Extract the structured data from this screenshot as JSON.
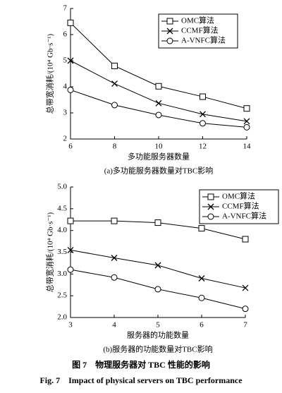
{
  "chart_data": [
    {
      "type": "line",
      "x_label": "多功能服务器数量",
      "y_label": "总带宽消耗/(10⁴ Gb·s⁻¹)",
      "caption": "(a)多功能服务器数量对TBC影响",
      "x": [
        6,
        8,
        10,
        12,
        14
      ],
      "xlim": [
        6,
        14
      ],
      "xticks": [
        6,
        8,
        10,
        12,
        14
      ],
      "ylim": [
        2,
        7
      ],
      "yticks": [
        2,
        3,
        4,
        5,
        6,
        7
      ],
      "legend": "upper right",
      "series": [
        {
          "name": "OMC算法",
          "color": "#000000",
          "marker": "square",
          "values": [
            6.45,
            4.8,
            4.02,
            3.62,
            3.17
          ]
        },
        {
          "name": "CCMF算法",
          "color": "#000000",
          "marker": "x",
          "values": [
            5.0,
            4.12,
            3.37,
            2.95,
            2.68
          ]
        },
        {
          "name": "A-VNFC算法",
          "color": "#000000",
          "marker": "circle",
          "values": [
            3.88,
            3.3,
            2.92,
            2.6,
            2.45
          ]
        }
      ]
    },
    {
      "type": "line",
      "x_label": "服务器的功能数量",
      "y_label": "总带宽消耗/(10⁴ Gb·s⁻¹)",
      "caption": "(b)服务器的功能数量对TBC影响",
      "x": [
        3,
        4,
        5,
        6,
        7
      ],
      "xlim": [
        3,
        7
      ],
      "xticks": [
        3,
        4,
        5,
        6,
        7
      ],
      "ylim": [
        2,
        5
      ],
      "yticks": [
        {
          "value": 2,
          "label": "2.0"
        },
        2.5,
        {
          "value": 3,
          "label": "3.0"
        },
        3.5,
        {
          "value": 4,
          "label": "4.0"
        },
        4.5,
        {
          "value": 5,
          "label": "5.0"
        }
      ],
      "legend": "upper right",
      "series": [
        {
          "name": "OMC算法",
          "color": "#000000",
          "marker": "square",
          "values": [
            4.22,
            4.22,
            4.18,
            4.05,
            3.8
          ]
        },
        {
          "name": "CCMF算法",
          "color": "#000000",
          "marker": "x",
          "values": [
            3.55,
            3.37,
            3.2,
            2.9,
            2.68
          ]
        },
        {
          "name": "A-VNFC算法",
          "color": "#000000",
          "marker": "circle",
          "values": [
            3.1,
            2.92,
            2.65,
            2.45,
            2.2
          ]
        }
      ]
    }
  ],
  "figure_caption_zh": "图 7　物理服务器对 TBC 性能的影响",
  "figure_caption_en": "Fig. 7　Impact of physical servers on TBC performance"
}
